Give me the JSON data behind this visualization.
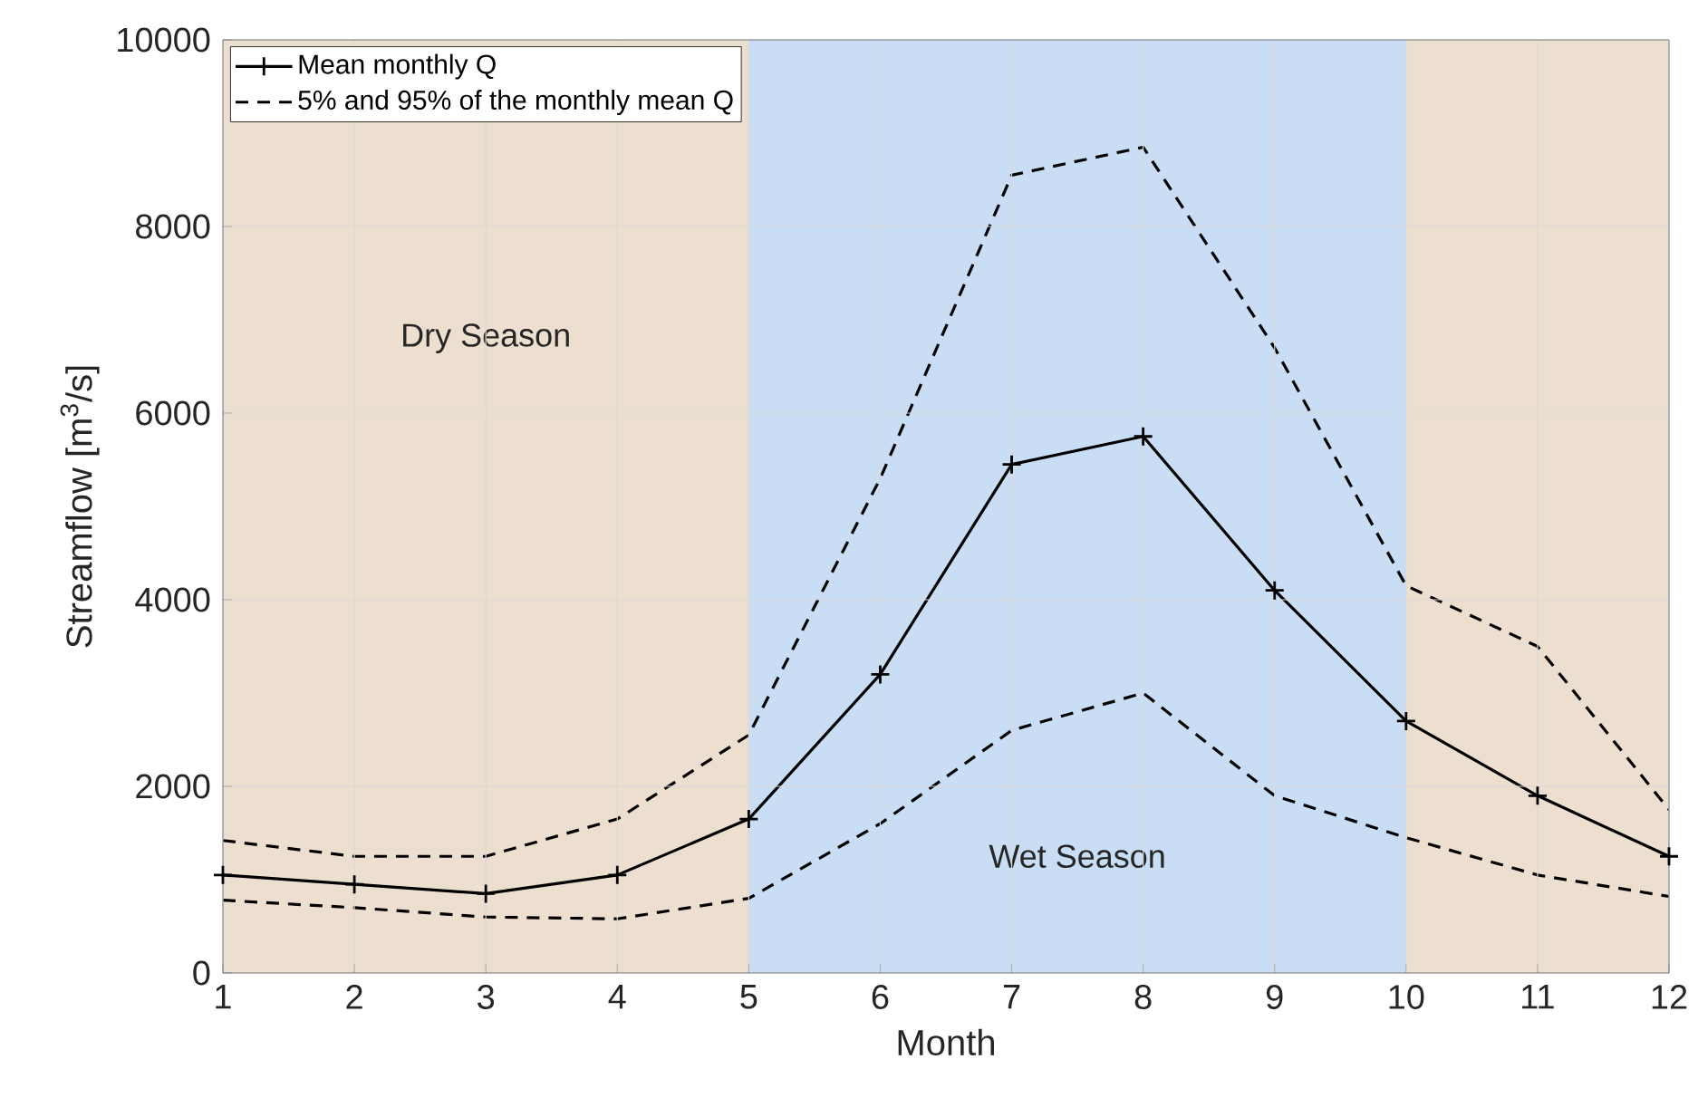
{
  "chart_data": {
    "type": "line",
    "xlabel": "Month",
    "ylabel": "Streamflow [m$^{3}$/s]",
    "x": [
      1,
      2,
      3,
      4,
      5,
      6,
      7,
      8,
      9,
      10,
      11,
      12
    ],
    "series": [
      {
        "name": "Mean monthly Q",
        "color": "#000000",
        "marker": "cross",
        "line_style": "solid",
        "values": [
          1050,
          950,
          850,
          1050,
          1650,
          3200,
          5450,
          5750,
          4100,
          2700,
          1900,
          1250
        ]
      },
      {
        "name": "5% and 95% of the monthly mean Q",
        "color": "#000000",
        "marker": "none",
        "line_style": "dashed",
        "values": [
          1420,
          1250,
          1250,
          1650,
          2550,
          5300,
          8550,
          8850,
          6700,
          4150,
          3500,
          1750
        ]
      },
      {
        "color": "#000000",
        "marker": "none",
        "line_style": "dashed",
        "values": [
          780,
          700,
          600,
          580,
          800,
          1600,
          2600,
          3000,
          1900,
          1450,
          1050,
          820
        ]
      }
    ],
    "bands": [
      {
        "axis": "x",
        "from": 1,
        "to": 5,
        "label": "Dry Season",
        "color": "#eddfd0"
      },
      {
        "axis": "x",
        "from": 5,
        "to": 10,
        "label": "Wet Season",
        "color": "#c9ddf5"
      },
      {
        "axis": "x",
        "from": 10,
        "to": 12,
        "color": "#eddfd0"
      }
    ],
    "xlim": [
      1,
      12
    ],
    "xticks": [
      1,
      2,
      3,
      4,
      5,
      6,
      7,
      8,
      9,
      10,
      11,
      12
    ],
    "ylim": [
      0,
      10000
    ],
    "yticks": [
      0,
      2000,
      4000,
      6000,
      8000,
      10000
    ],
    "grid": true,
    "legend": "top left"
  }
}
